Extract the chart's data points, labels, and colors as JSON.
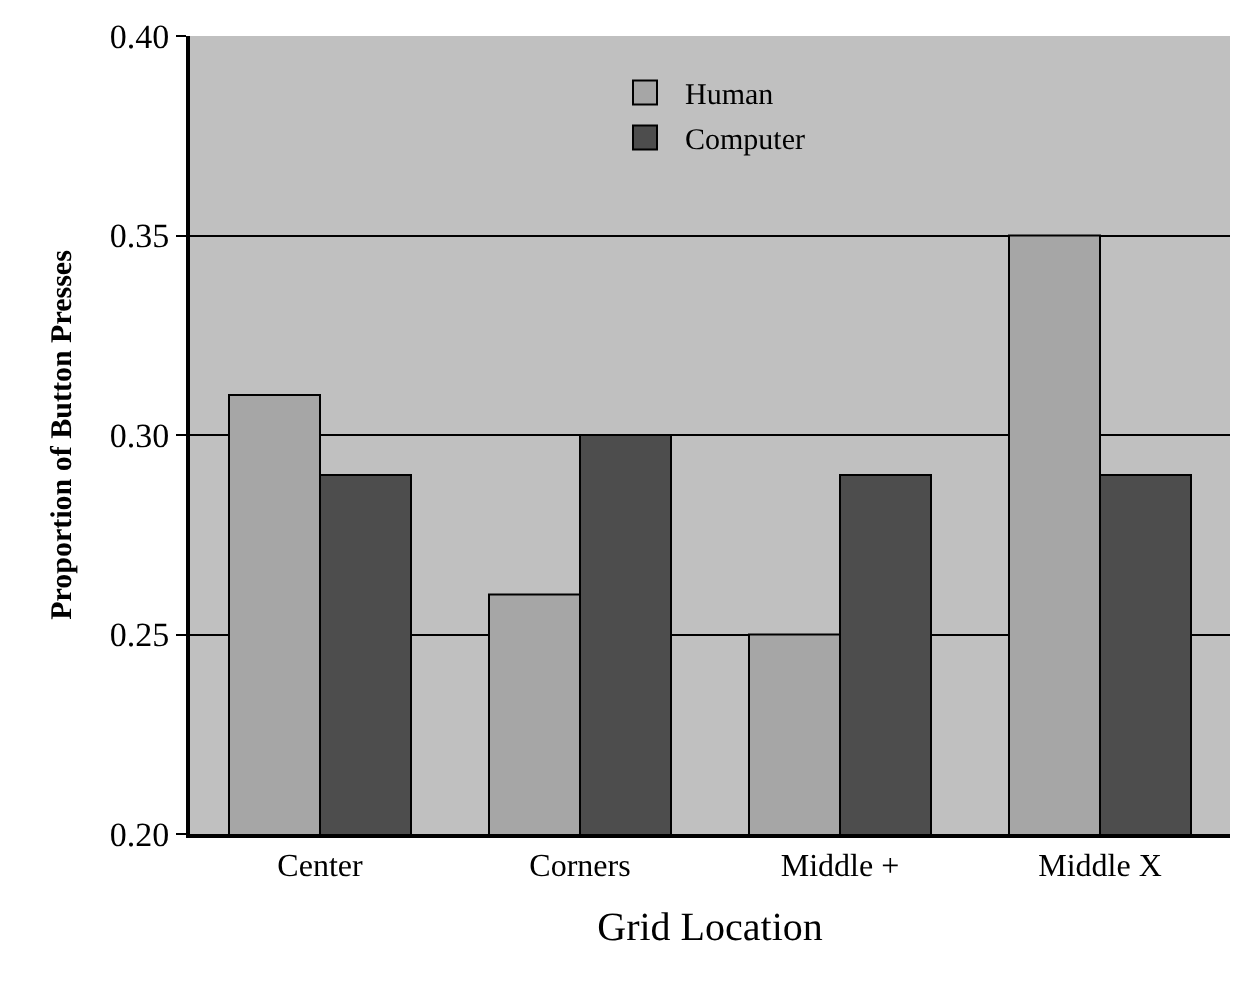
{
  "chart_data": {
    "type": "bar",
    "xlabel": "Grid Location",
    "ylabel": "Proportion of Button Presses",
    "categories": [
      "Center",
      "Corners",
      "Middle +",
      "Middle X"
    ],
    "series": [
      {
        "name": "Human",
        "color": "#a6a6a6",
        "values": [
          0.31,
          0.26,
          0.25,
          0.35
        ]
      },
      {
        "name": "Computer",
        "color": "#4d4d4d",
        "values": [
          0.29,
          0.3,
          0.29,
          0.29
        ]
      }
    ],
    "ylim": [
      0.2,
      0.4
    ],
    "yticks": [
      {
        "value": 0.2,
        "label": "0.20"
      },
      {
        "value": 0.25,
        "label": "0.25"
      },
      {
        "value": 0.3,
        "label": "0.30"
      },
      {
        "value": 0.35,
        "label": "0.35"
      },
      {
        "value": 0.4,
        "label": "0.40"
      }
    ],
    "grid": "y",
    "legend": "top"
  }
}
